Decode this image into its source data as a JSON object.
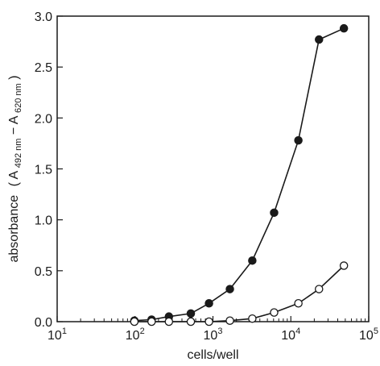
{
  "chart_data": {
    "type": "scatter",
    "title": "",
    "xlabel": "cells/well",
    "ylabel": {
      "main": "absorbance",
      "a1": "A",
      "s1": "492 nm",
      "dash": "−",
      "a2": "A",
      "s2": "620 nm"
    },
    "x_scale": "log",
    "xlim": [
      10,
      100000
    ],
    "ylim": [
      0,
      3.0
    ],
    "x_ticks": [
      {
        "value": 10,
        "base": "10",
        "exp": "1"
      },
      {
        "value": 100,
        "base": "10",
        "exp": "2"
      },
      {
        "value": 1000,
        "base": "10",
        "exp": "3"
      },
      {
        "value": 10000,
        "base": "10",
        "exp": "4"
      },
      {
        "value": 100000,
        "base": "10",
        "exp": "5"
      }
    ],
    "y_ticks": [
      {
        "value": 0,
        "label": "0.0"
      },
      {
        "value": 0.5,
        "label": "0.5"
      },
      {
        "value": 1.0,
        "label": "1.0"
      },
      {
        "value": 1.5,
        "label": "1.5"
      },
      {
        "value": 2.0,
        "label": "2.0"
      },
      {
        "value": 2.5,
        "label": "2.5"
      },
      {
        "value": 3.0,
        "label": "3.0"
      }
    ],
    "grid": false,
    "series": [
      {
        "marker": "filled-circle",
        "color": "#1a1a1a",
        "x": [
          98,
          163,
          272,
          520,
          890,
          1650,
          3200,
          6100,
          12500,
          23000,
          48000
        ],
        "y": [
          0.01,
          0.02,
          0.05,
          0.08,
          0.18,
          0.32,
          0.6,
          1.07,
          1.78,
          2.77,
          2.88
        ]
      },
      {
        "marker": "open-circle",
        "color": "#1a1a1a",
        "x": [
          98,
          163,
          272,
          520,
          890,
          1650,
          3200,
          6100,
          12500,
          23000,
          48000
        ],
        "y": [
          0.0,
          0.0,
          0.0,
          0.0,
          0.0,
          0.01,
          0.03,
          0.09,
          0.18,
          0.32,
          0.55
        ]
      }
    ]
  }
}
